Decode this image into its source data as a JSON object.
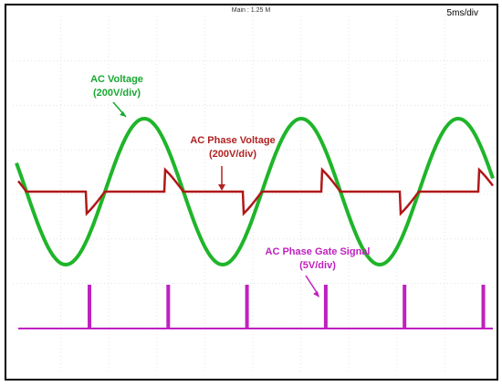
{
  "header": {
    "timebase": "Main : 1.25 M",
    "scale": "5ms/div"
  },
  "annotations": [
    {
      "label": "AC Voltage",
      "scale": "(200V/div)"
    },
    {
      "label": "AC Phase Voltage",
      "scale": "(200V/div)"
    },
    {
      "label": "AC Phase Gate Signal",
      "scale": "(5V/div)"
    }
  ]
}
